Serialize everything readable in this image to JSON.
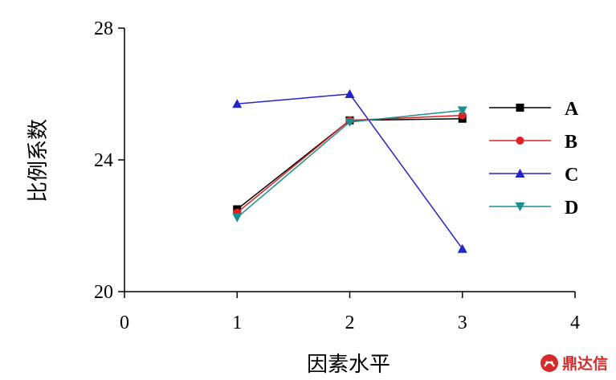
{
  "chart_data": {
    "type": "line",
    "title": "",
    "xlabel": "因素水平",
    "ylabel": "比例系数",
    "xlim": [
      0,
      4
    ],
    "ylim": [
      20,
      28
    ],
    "xticks": [
      0,
      1,
      2,
      3,
      4
    ],
    "yticks": [
      20,
      24,
      28
    ],
    "x": [
      1,
      2,
      3
    ],
    "grid": false,
    "legend_position": "right",
    "series": [
      {
        "name": "A",
        "values": [
          22.5,
          25.2,
          25.25
        ],
        "color": "#000000",
        "marker": "square"
      },
      {
        "name": "B",
        "values": [
          22.4,
          25.2,
          25.35
        ],
        "color": "#e02020",
        "marker": "circle"
      },
      {
        "name": "C",
        "values": [
          25.7,
          26.0,
          21.3
        ],
        "color": "#2323c8",
        "marker": "triangle-up"
      },
      {
        "name": "D",
        "values": [
          22.25,
          25.15,
          25.5
        ],
        "color": "#1a8f8f",
        "marker": "triangle-down"
      }
    ]
  },
  "watermark": {
    "text": "鼎达信",
    "icon": "logo-icon",
    "color": "#d52b2b"
  }
}
